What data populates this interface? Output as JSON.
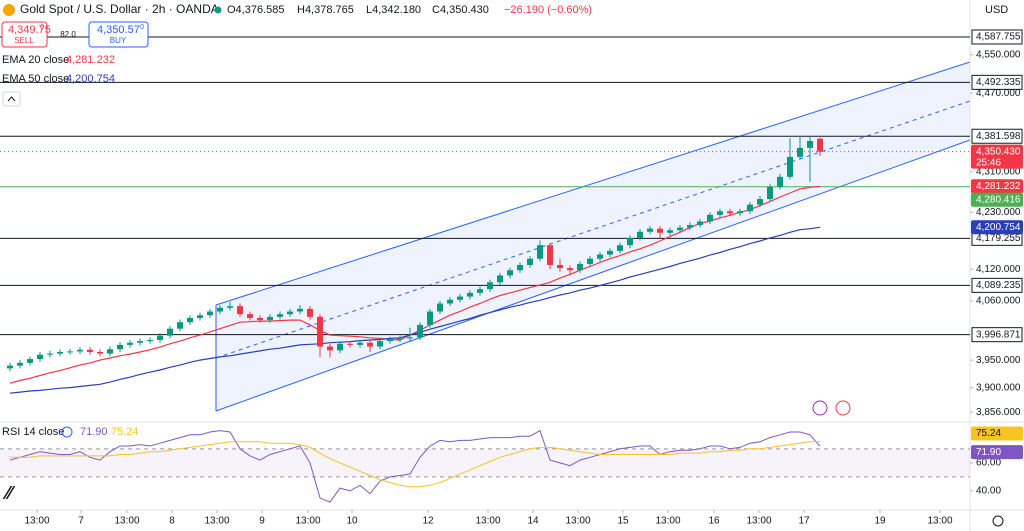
{
  "header": {
    "symbol": "Gold Spot / U.S. Dollar · 2h · OANDA",
    "open": "O4,376.585",
    "high": "H4,378.765",
    "low": "L4,342.180",
    "close": "C4,350.430",
    "change": "−26.190 (−0.60%)"
  },
  "trade": {
    "sell_price": "4,349.75",
    "sell_sup": "0",
    "sell": "SELL",
    "spread": "82.0",
    "buy_price": "4,350.57",
    "buy_sup": "0",
    "buy": "BUY"
  },
  "chart_data": {
    "type": "candlestick",
    "currency": "USD",
    "log_scale": true,
    "grid": false,
    "xlim": [
      -1,
      96
    ],
    "xticks": [
      {
        "value": 2.7,
        "label": "13:00"
      },
      {
        "value": 7.1,
        "label": "7"
      },
      {
        "value": 11.7,
        "label": "13:00"
      },
      {
        "value": 16.2,
        "label": "8"
      },
      {
        "value": 20.7,
        "label": "13:00"
      },
      {
        "value": 25.2,
        "label": "9"
      },
      {
        "value": 29.8,
        "label": "13:00"
      },
      {
        "value": 34.2,
        "label": "10"
      },
      {
        "value": 41.8,
        "label": "12"
      },
      {
        "value": 47.8,
        "label": "13:00"
      },
      {
        "value": 52.3,
        "label": "14"
      },
      {
        "value": 56.8,
        "label": "13:00"
      },
      {
        "value": 61.3,
        "label": "15"
      },
      {
        "value": 65.8,
        "label": "13:00"
      },
      {
        "value": 70.4,
        "label": "16"
      },
      {
        "value": 74.9,
        "label": "13:00"
      },
      {
        "value": 79.4,
        "label": "17"
      },
      {
        "value": 87,
        "label": "19"
      },
      {
        "value": 93,
        "label": "13:00"
      }
    ],
    "ylim": [
      3842,
      4667
    ],
    "yticks": [
      {
        "value": 4550,
        "label": "4,550.000"
      },
      {
        "value": 4470,
        "label": "4,470.000"
      },
      {
        "value": 4310,
        "label": "4,310.000"
      },
      {
        "value": 4230,
        "label": "4,230.000"
      },
      {
        "value": 4120,
        "label": "4,120.000"
      },
      {
        "value": 4060,
        "label": "4,060.000"
      },
      {
        "value": 3950,
        "label": "3,950.000"
      },
      {
        "value": 3900,
        "label": "3,900.000"
      },
      {
        "value": 3856,
        "label": "3,856.000"
      }
    ],
    "up_color": "#089981",
    "down_color": "#f23645",
    "open": [
      3935,
      3940,
      3945,
      3952,
      3960,
      3962,
      3965,
      3966,
      3969,
      3965,
      3962,
      3970,
      3978,
      3982,
      3985,
      3987,
      3995,
      4008,
      4020,
      4028,
      4033,
      4040,
      4047,
      4050,
      4035,
      4028,
      4024,
      4030,
      4035,
      4040,
      4045,
      4030,
      3975,
      3968,
      3980,
      3978,
      3982,
      3975,
      3985,
      3988,
      3990,
      3992,
      4015,
      4040,
      4055,
      4062,
      4068,
      4075,
      4082,
      4095,
      4108,
      4118,
      4128,
      4140,
      4166,
      4128,
      4122,
      4118,
      4130,
      4140,
      4148,
      4155,
      4166,
      4180,
      4192,
      4198,
      4190,
      4195,
      4200,
      4205,
      4212,
      4225,
      4232,
      4228,
      4232,
      4245,
      4256,
      4280,
      4300,
      4340,
      4358,
      4376.585
    ],
    "high": [
      3945,
      3950,
      3957,
      3965,
      3967,
      3970,
      3971,
      3974,
      3974,
      3970,
      3975,
      3983,
      3987,
      3990,
      3992,
      4000,
      4013,
      4025,
      4033,
      4038,
      4045,
      4052,
      4058,
      4055,
      4040,
      4033,
      4035,
      4040,
      4045,
      4052,
      4050,
      4035,
      3980,
      3985,
      3985,
      3987,
      3987,
      3990,
      3993,
      3995,
      4010,
      4020,
      4045,
      4060,
      4067,
      4073,
      4080,
      4087,
      4100,
      4113,
      4123,
      4133,
      4145,
      4175,
      4170,
      4140,
      4127,
      4135,
      4145,
      4153,
      4160,
      4171,
      4185,
      4197,
      4203,
      4203,
      4200,
      4205,
      4210,
      4217,
      4230,
      4237,
      4237,
      4237,
      4250,
      4262,
      4286,
      4306,
      4378,
      4382,
      4380,
      4378.765
    ],
    "low": [
      3930,
      3935,
      3940,
      3947,
      3955,
      3957,
      3960,
      3961,
      3960,
      3957,
      3957,
      3965,
      3973,
      3977,
      3980,
      3982,
      3990,
      4003,
      4015,
      4023,
      4028,
      4035,
      4042,
      4030,
      4023,
      4019,
      4019,
      4025,
      4030,
      4035,
      4025,
      3955,
      3955,
      3963,
      3973,
      3973,
      3965,
      3970,
      3980,
      3983,
      3985,
      3987,
      4010,
      4035,
      4050,
      4057,
      4063,
      4070,
      4077,
      4090,
      4103,
      4113,
      4123,
      4135,
      4120,
      4115,
      4110,
      4113,
      4125,
      4135,
      4143,
      4150,
      4160,
      4175,
      4187,
      4180,
      4185,
      4190,
      4195,
      4200,
      4207,
      4220,
      4223,
      4223,
      4227,
      4240,
      4251,
      4275,
      4295,
      4335,
      4290,
      4342.18
    ],
    "close": [
      3940,
      3945,
      3952,
      3960,
      3962,
      3965,
      3966,
      3969,
      3965,
      3962,
      3970,
      3978,
      3982,
      3985,
      3987,
      3995,
      4008,
      4020,
      4028,
      4033,
      4040,
      4047,
      4050,
      4035,
      4028,
      4024,
      4030,
      4035,
      4040,
      4045,
      4030,
      3975,
      3968,
      3980,
      3978,
      3982,
      3975,
      3985,
      3988,
      3990,
      3992,
      4015,
      4040,
      4055,
      4062,
      4068,
      4075,
      4082,
      4095,
      4108,
      4118,
      4128,
      4140,
      4166,
      4128,
      4122,
      4118,
      4130,
      4140,
      4148,
      4155,
      4166,
      4180,
      4192,
      4198,
      4190,
      4195,
      4200,
      4205,
      4212,
      4225,
      4232,
      4228,
      4232,
      4245,
      4256,
      4280,
      4300,
      4340,
      4358,
      4372,
      4350.43
    ],
    "series": [
      {
        "name": "EMA 20 close",
        "color": "#f23645",
        "last_label": "4,281.232",
        "values": [
          3908,
          3913,
          3917,
          3922,
          3927,
          3931,
          3936,
          3941,
          3945,
          3950,
          3954,
          3958,
          3961,
          3965,
          3969,
          3974,
          3980,
          3985,
          3991,
          3996,
          4002,
          4008,
          4014,
          4020,
          4021,
          4022,
          4022,
          4023,
          4024,
          4024,
          4015,
          4005,
          3996,
          3995,
          3994,
          3993,
          3991,
          3990,
          3988,
          3987,
          3996,
          4005,
          4015,
          4024,
          4033,
          4040,
          4048,
          4055,
          4063,
          4070,
          4075,
          4080,
          4085,
          4090,
          4095,
          4103,
          4110,
          4118,
          4125,
          4133,
          4140,
          4146,
          4153,
          4159,
          4166,
          4174,
          4183,
          4191,
          4200,
          4208,
          4213,
          4219,
          4224,
          4230,
          4235,
          4243,
          4251,
          4260,
          4268,
          4276,
          4279,
          4281.232
        ]
      },
      {
        "name": "EMA 50 close",
        "color": "#2a3fb8",
        "last_label": "4,200.754",
        "values": [
          3890,
          3892,
          3894,
          3895,
          3897,
          3899,
          3900,
          3902,
          3904,
          3906,
          3910,
          3915,
          3919,
          3924,
          3928,
          3932,
          3937,
          3941,
          3946,
          3950,
          3953,
          3956,
          3958,
          3961,
          3964,
          3967,
          3970,
          3972,
          3975,
          3978,
          3979,
          3980,
          3982,
          3983,
          3984,
          3986,
          3987,
          3988,
          3990,
          3991,
          3996,
          4001,
          4007,
          4012,
          4017,
          4022,
          4027,
          4033,
          4038,
          4043,
          4048,
          4052,
          4057,
          4061,
          4066,
          4071,
          4075,
          4080,
          4084,
          4089,
          4094,
          4099,
          4105,
          4110,
          4115,
          4120,
          4125,
          4131,
          4136,
          4141,
          4147,
          4152,
          4158,
          4163,
          4169,
          4174,
          4180,
          4185,
          4191,
          4196,
          4198,
          4200.754
        ]
      }
    ],
    "levels": [
      {
        "value": 4587.755,
        "label": "4,587.755"
      },
      {
        "value": 4492.335,
        "label": "4,492.335"
      },
      {
        "value": 4381.598,
        "label": "4,381.598"
      },
      {
        "value": 4179.255,
        "label": "4,179.255"
      },
      {
        "value": 4089.235,
        "label": "4,089.235"
      },
      {
        "value": 3996.871,
        "label": "3,996.871"
      }
    ],
    "last_price": {
      "value": 4350.43,
      "label": "4,350.430",
      "countdown": "25:46",
      "color": "#f23645"
    },
    "position": {
      "value": 4280.416,
      "label": "4,280.416",
      "color": "#4caf50"
    },
    "rsi": {
      "name": "RSI 14 close",
      "ylim": [
        26.4,
        87
      ],
      "yticks": [
        {
          "value": 60,
          "label": "60.00"
        },
        {
          "value": 40,
          "label": "40.00"
        }
      ],
      "levels": [
        70,
        50
      ],
      "series": [
        {
          "color": "#7e57c2",
          "last_label": "71.90",
          "values": [
            62,
            64,
            66,
            68,
            67,
            66,
            66,
            68,
            64,
            62,
            68,
            72,
            72,
            73,
            72,
            74,
            76,
            78,
            80,
            80,
            82,
            83,
            82,
            70,
            65,
            62,
            66,
            68,
            70,
            72,
            60,
            35,
            32,
            42,
            40,
            44,
            38,
            47,
            50,
            51,
            52,
            64,
            72,
            76,
            75,
            76,
            76,
            77,
            78,
            78,
            78,
            79,
            79,
            83,
            62,
            60,
            58,
            62,
            64,
            66,
            68,
            70,
            71,
            72,
            72,
            66,
            68,
            69,
            69,
            70,
            72,
            72,
            70,
            71,
            74,
            75,
            78,
            80,
            82,
            82,
            80,
            71.9
          ]
        },
        {
          "color": "#f7c325",
          "last_label": "75.24",
          "values": [
            64,
            64,
            64,
            65,
            65,
            65,
            65,
            65,
            65,
            65,
            65,
            66,
            66,
            67,
            68,
            68,
            69,
            70,
            71,
            72,
            73,
            74,
            75,
            75,
            75,
            75,
            74,
            74,
            74,
            73,
            71,
            67,
            63,
            60,
            57,
            54,
            51,
            48,
            46,
            44,
            43,
            43,
            44,
            46,
            49,
            52,
            55,
            58,
            61,
            64,
            66,
            68,
            70,
            71,
            71,
            70,
            69,
            68,
            67,
            66,
            66,
            66,
            66,
            66,
            66,
            66,
            66,
            67,
            67,
            67,
            68,
            68,
            69,
            69,
            70,
            70,
            71,
            72,
            73,
            74,
            75,
            75.24
          ]
        }
      ]
    }
  }
}
